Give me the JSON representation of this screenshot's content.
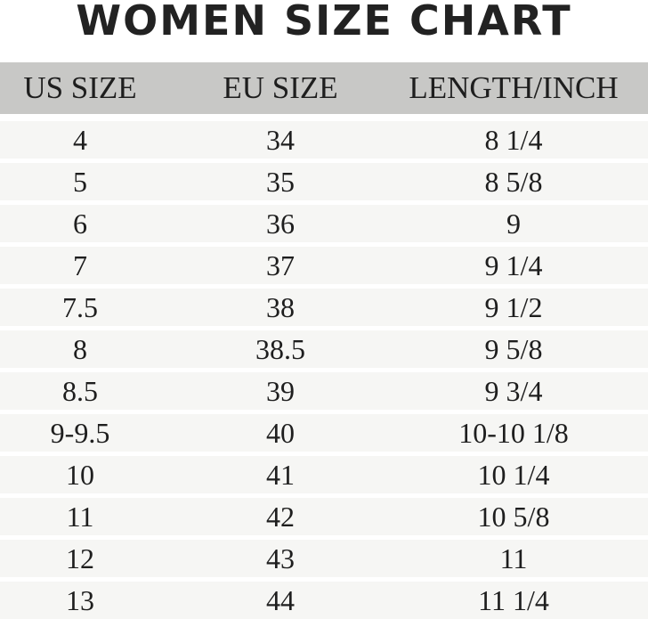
{
  "title": "WOMEN SIZE CHART",
  "headers": [
    "US SIZE",
    "EU SIZE",
    "LENGTH/INCH"
  ],
  "rows": [
    [
      "4",
      "34",
      "8 1/4"
    ],
    [
      "5",
      "35",
      "8 5/8"
    ],
    [
      "6",
      "36",
      "9"
    ],
    [
      "7",
      "37",
      "9 1/4"
    ],
    [
      "7.5",
      "38",
      "9 1/2"
    ],
    [
      "8",
      "38.5",
      "9 5/8"
    ],
    [
      "8.5",
      "39",
      "9 3/4"
    ],
    [
      "9-9.5",
      "40",
      "10-10 1/8"
    ],
    [
      "10",
      "41",
      "10 1/4"
    ],
    [
      "11",
      "42",
      "10 5/8"
    ],
    [
      "12",
      "43",
      "11"
    ],
    [
      "13",
      "44",
      "11 1/4"
    ]
  ]
}
